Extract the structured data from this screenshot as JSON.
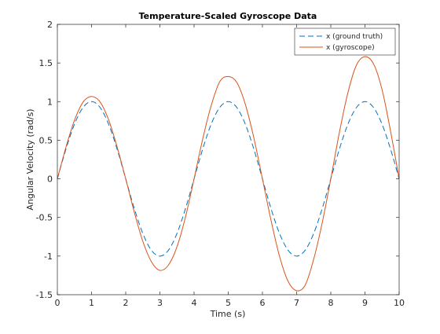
{
  "chart_data": {
    "type": "line",
    "title": "Temperature-Scaled Gyroscope Data",
    "xlabel": "Time (s)",
    "ylabel": "Angular Velocity (rad/s)",
    "xlim": [
      0,
      10
    ],
    "ylim": [
      -1.5,
      2
    ],
    "xticks": [
      0,
      1,
      2,
      3,
      4,
      5,
      6,
      7,
      8,
      9,
      10
    ],
    "xtick_labels": [
      "0",
      "1",
      "2",
      "3",
      "4",
      "5",
      "6",
      "7",
      "8",
      "9",
      "10"
    ],
    "yticks": [
      -1.5,
      -1,
      -0.5,
      0,
      0.5,
      1,
      1.5,
      2
    ],
    "ytick_labels": [
      "-1.5",
      "-1",
      "-0.5",
      "0",
      "0.5",
      "1",
      "1.5",
      "2"
    ],
    "grid": false,
    "legend_position": "top-right",
    "x": [
      0,
      0.25,
      0.5,
      0.75,
      1,
      1.25,
      1.5,
      1.75,
      2,
      2.25,
      2.5,
      2.75,
      3,
      3.25,
      3.5,
      3.75,
      4,
      4.25,
      4.5,
      4.75,
      5,
      5.25,
      5.5,
      5.75,
      6,
      6.25,
      6.5,
      6.75,
      7,
      7.25,
      7.5,
      7.75,
      8,
      8.25,
      8.5,
      8.75,
      9,
      9.25,
      9.5,
      9.75,
      10
    ],
    "series": [
      {
        "name": "x (ground truth)",
        "color": "#0072BD",
        "line_style": "dashed",
        "values": [
          0,
          0.383,
          0.707,
          0.924,
          1,
          0.924,
          0.707,
          0.383,
          0,
          -0.383,
          -0.707,
          -0.924,
          -1,
          -0.924,
          -0.707,
          -0.383,
          0,
          0.383,
          0.707,
          0.924,
          1,
          0.924,
          0.707,
          0.383,
          0,
          -0.383,
          -0.707,
          -0.924,
          -1,
          -0.924,
          -0.707,
          -0.383,
          0,
          0.383,
          0.707,
          0.924,
          1,
          0.924,
          0.707,
          0.383,
          0
        ]
      },
      {
        "name": "x (gyroscope)",
        "color": "#D95319",
        "line_style": "solid",
        "values": [
          0,
          0.408,
          0.757,
          0.992,
          1.067,
          0.995,
          0.764,
          0.41,
          0,
          -0.43,
          -0.808,
          -1.071,
          -1.185,
          -1.116,
          -0.879,
          -0.491,
          0,
          0.511,
          0.947,
          1.257,
          1.325,
          1.248,
          0.964,
          0.528,
          0,
          -0.534,
          -1.003,
          -1.326,
          -1.448,
          -1.377,
          -1.04,
          -0.567,
          0,
          0.597,
          1.114,
          1.472,
          1.582,
          1.488,
          1.155,
          0.613,
          0
        ]
      }
    ]
  }
}
